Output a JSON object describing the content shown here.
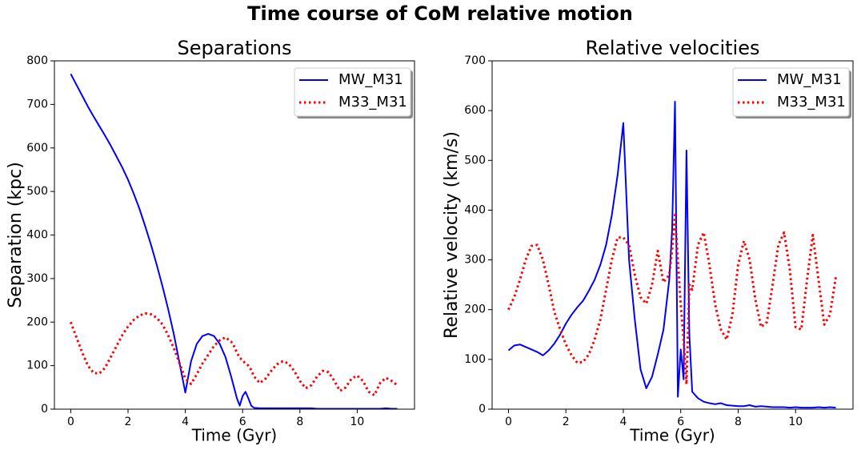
{
  "title": "Time course of CoM relative motion",
  "chart_data": [
    {
      "type": "line",
      "title": "Separations",
      "xlabel": "Time (Gyr)",
      "ylabel": "Separation (kpc)",
      "x": [
        0,
        0.2,
        0.4,
        0.6,
        0.8,
        1,
        1.2,
        1.4,
        1.6,
        1.8,
        2,
        2.2,
        2.4,
        2.6,
        2.8,
        3,
        3.2,
        3.4,
        3.6,
        3.8,
        4,
        4.2,
        4.4,
        4.6,
        4.8,
        5,
        5.2,
        5.4,
        5.6,
        5.7,
        5.8,
        5.9,
        6,
        6.1,
        6.2,
        6.3,
        6.4,
        6.6,
        6.8,
        7,
        7.2,
        7.4,
        7.6,
        7.8,
        8,
        8.2,
        8.4,
        8.6,
        8.8,
        9,
        9.2,
        9.4,
        9.6,
        9.8,
        10,
        10.2,
        10.4,
        10.6,
        10.8,
        11,
        11.2,
        11.4
      ],
      "series": [
        {
          "name": "MW_M31",
          "color": "#0000ff",
          "linestyle": "solid",
          "values": [
            770,
            745,
            720,
            695,
            672,
            650,
            628,
            605,
            580,
            555,
            527,
            495,
            460,
            420,
            378,
            332,
            283,
            230,
            172,
            105,
            38,
            110,
            150,
            168,
            173,
            168,
            150,
            120,
            75,
            50,
            25,
            8,
            30,
            40,
            25,
            8,
            3,
            2,
            2,
            2,
            2,
            2,
            2,
            2,
            2,
            2,
            2,
            1,
            1,
            1,
            1,
            1,
            1,
            1,
            1,
            1,
            1,
            1,
            1,
            2,
            1,
            1
          ]
        },
        {
          "name": "M33_M31",
          "color": "#ff0000",
          "linestyle": "dotted",
          "values": [
            200,
            165,
            130,
            100,
            83,
            82,
            95,
            120,
            145,
            170,
            190,
            205,
            215,
            220,
            218,
            210,
            195,
            170,
            140,
            105,
            70,
            58,
            80,
            105,
            125,
            145,
            158,
            165,
            155,
            145,
            130,
            118,
            112,
            105,
            100,
            90,
            75,
            60,
            70,
            88,
            103,
            110,
            105,
            88,
            65,
            48,
            55,
            75,
            88,
            85,
            65,
            42,
            50,
            70,
            77,
            65,
            40,
            32,
            60,
            72,
            65,
            55
          ]
        }
      ],
      "xlim": [
        -0.57,
        12.0
      ],
      "xticks": [
        0,
        2,
        4,
        6,
        8,
        10
      ],
      "ylim": [
        0,
        800
      ],
      "yticks": [
        0,
        100,
        200,
        300,
        400,
        500,
        600,
        700,
        800
      ],
      "legend": "upper right",
      "grid": false
    },
    {
      "type": "line",
      "title": "Relative velocities",
      "xlabel": "Time (Gyr)",
      "ylabel": "Relative velocity (km/s)",
      "x": [
        0,
        0.2,
        0.4,
        0.6,
        0.8,
        1,
        1.2,
        1.4,
        1.6,
        1.8,
        2,
        2.2,
        2.4,
        2.6,
        2.8,
        3,
        3.2,
        3.4,
        3.6,
        3.8,
        4,
        4.2,
        4.4,
        4.6,
        4.8,
        5,
        5.2,
        5.4,
        5.6,
        5.7,
        5.8,
        5.9,
        6,
        6.1,
        6.2,
        6.3,
        6.4,
        6.6,
        6.8,
        7,
        7.2,
        7.4,
        7.6,
        7.8,
        8,
        8.2,
        8.4,
        8.6,
        8.8,
        9,
        9.2,
        9.4,
        9.6,
        9.8,
        10,
        10.2,
        10.4,
        10.6,
        10.8,
        11,
        11.2,
        11.4
      ],
      "series": [
        {
          "name": "MW_M31",
          "color": "#0000ff",
          "linestyle": "solid",
          "values": [
            118,
            128,
            130,
            125,
            120,
            115,
            108,
            118,
            132,
            150,
            172,
            190,
            205,
            218,
            238,
            260,
            290,
            330,
            390,
            470,
            575,
            300,
            180,
            80,
            42,
            65,
            110,
            160,
            260,
            360,
            618,
            25,
            120,
            60,
            520,
            150,
            35,
            22,
            15,
            12,
            10,
            12,
            8,
            7,
            6,
            6,
            8,
            5,
            6,
            5,
            4,
            4,
            4,
            3,
            4,
            3,
            3,
            3,
            4,
            3,
            4,
            3
          ]
        },
        {
          "name": "M33_M31",
          "color": "#ff0000",
          "linestyle": "dotted",
          "values": [
            200,
            225,
            260,
            300,
            328,
            330,
            300,
            250,
            195,
            160,
            130,
            108,
            93,
            95,
            110,
            140,
            180,
            240,
            300,
            345,
            345,
            330,
            270,
            225,
            212,
            250,
            318,
            255,
            270,
            320,
            390,
            300,
            210,
            140,
            50,
            250,
            240,
            330,
            355,
            290,
            210,
            160,
            140,
            190,
            290,
            338,
            300,
            220,
            165,
            175,
            250,
            330,
            355,
            280,
            165,
            160,
            260,
            350,
            260,
            170,
            190,
            265
          ]
        }
      ],
      "xlim": [
        -0.57,
        12.0
      ],
      "xticks": [
        0,
        2,
        4,
        6,
        8,
        10
      ],
      "ylim": [
        0,
        700
      ],
      "yticks": [
        0,
        100,
        200,
        300,
        400,
        500,
        600,
        700
      ],
      "legend": "upper right",
      "grid": false
    }
  ]
}
